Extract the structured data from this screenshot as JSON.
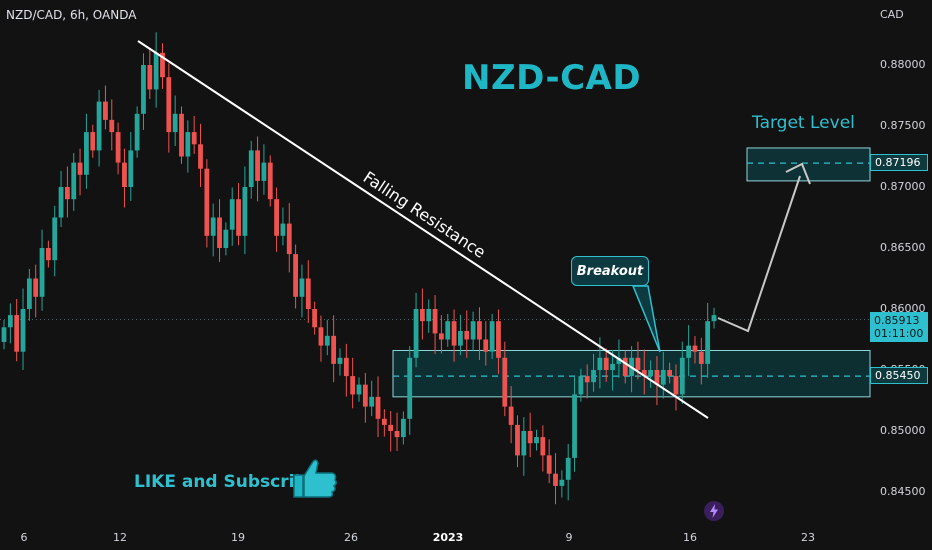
{
  "header": {
    "symbol": "NZD/CAD, 6h, OANDA",
    "currency": "CAD"
  },
  "annotations": {
    "title": "NZD-CAD",
    "target_label": "Target Level",
    "falling_resistance": "Falling Resistance",
    "breakout": "Breakout",
    "like_subscribe": "LIKE and Subscribe"
  },
  "badges": {
    "current_price": "0.85913",
    "countdown": "01:11:00",
    "target_price": "0.87196",
    "support_price": "0.85450"
  },
  "colors": {
    "bullish": "#26a69a",
    "bearish": "#ef5350",
    "accent": "#2ec0cf",
    "zone_fill": "#0e3a3e"
  },
  "chart_data": {
    "type": "candlestick",
    "symbol": "NZD/CAD",
    "timeframe": "6h",
    "y_ticks": [
      0.845,
      0.85,
      0.855,
      0.86,
      0.865,
      0.87,
      0.875,
      0.88
    ],
    "y_tick_labels": [
      "0.84500",
      "0.85000",
      "0.85500",
      "0.86000",
      "0.86500",
      "0.87000",
      "0.87500",
      "0.88000"
    ],
    "x_tick_labels": [
      {
        "label": "6",
        "bold": false
      },
      {
        "label": "12",
        "bold": false
      },
      {
        "label": "19",
        "bold": false
      },
      {
        "label": "26",
        "bold": false
      },
      {
        "label": "2023",
        "bold": true
      },
      {
        "label": "9",
        "bold": false
      },
      {
        "label": "16",
        "bold": false
      },
      {
        "label": "23",
        "bold": false
      }
    ],
    "ylim": [
      0.8425,
      0.8845
    ],
    "current_price": 0.85913,
    "support_zone": [
      0.8528,
      0.8566
    ],
    "support_level": 0.8545,
    "target_zone": [
      0.8705,
      0.8732
    ],
    "target_level": 0.87196,
    "closes": [
      0.8585,
      0.8595,
      0.8565,
      0.86,
      0.8625,
      0.861,
      0.865,
      0.864,
      0.8675,
      0.87,
      0.869,
      0.872,
      0.871,
      0.8745,
      0.873,
      0.877,
      0.8755,
      0.8745,
      0.872,
      0.87,
      0.873,
      0.876,
      0.88,
      0.878,
      0.881,
      0.879,
      0.8745,
      0.876,
      0.8725,
      0.8745,
      0.8735,
      0.8715,
      0.866,
      0.8675,
      0.865,
      0.8665,
      0.869,
      0.866,
      0.87,
      0.873,
      0.8705,
      0.872,
      0.869,
      0.866,
      0.867,
      0.8645,
      0.861,
      0.8625,
      0.86,
      0.8585,
      0.857,
      0.8578,
      0.8555,
      0.856,
      0.8545,
      0.853,
      0.8538,
      0.852,
      0.8528,
      0.851,
      0.8505,
      0.85,
      0.8495,
      0.851,
      0.856,
      0.86,
      0.859,
      0.86,
      0.858,
      0.8575,
      0.859,
      0.857,
      0.8582,
      0.8575,
      0.859,
      0.8575,
      0.8565,
      0.859,
      0.856,
      0.852,
      0.8505,
      0.848,
      0.85,
      0.849,
      0.8495,
      0.848,
      0.8465,
      0.8455,
      0.846,
      0.8478,
      0.853,
      0.8545,
      0.854,
      0.855,
      0.856,
      0.855,
      0.8555,
      0.856,
      0.8545,
      0.856,
      0.855,
      0.8545,
      0.855,
      0.8538,
      0.855,
      0.8545,
      0.853,
      0.856,
      0.857,
      0.8565,
      0.8555,
      0.859,
      0.8595
    ]
  },
  "footer": {
    "icon": "lightning-icon"
  }
}
